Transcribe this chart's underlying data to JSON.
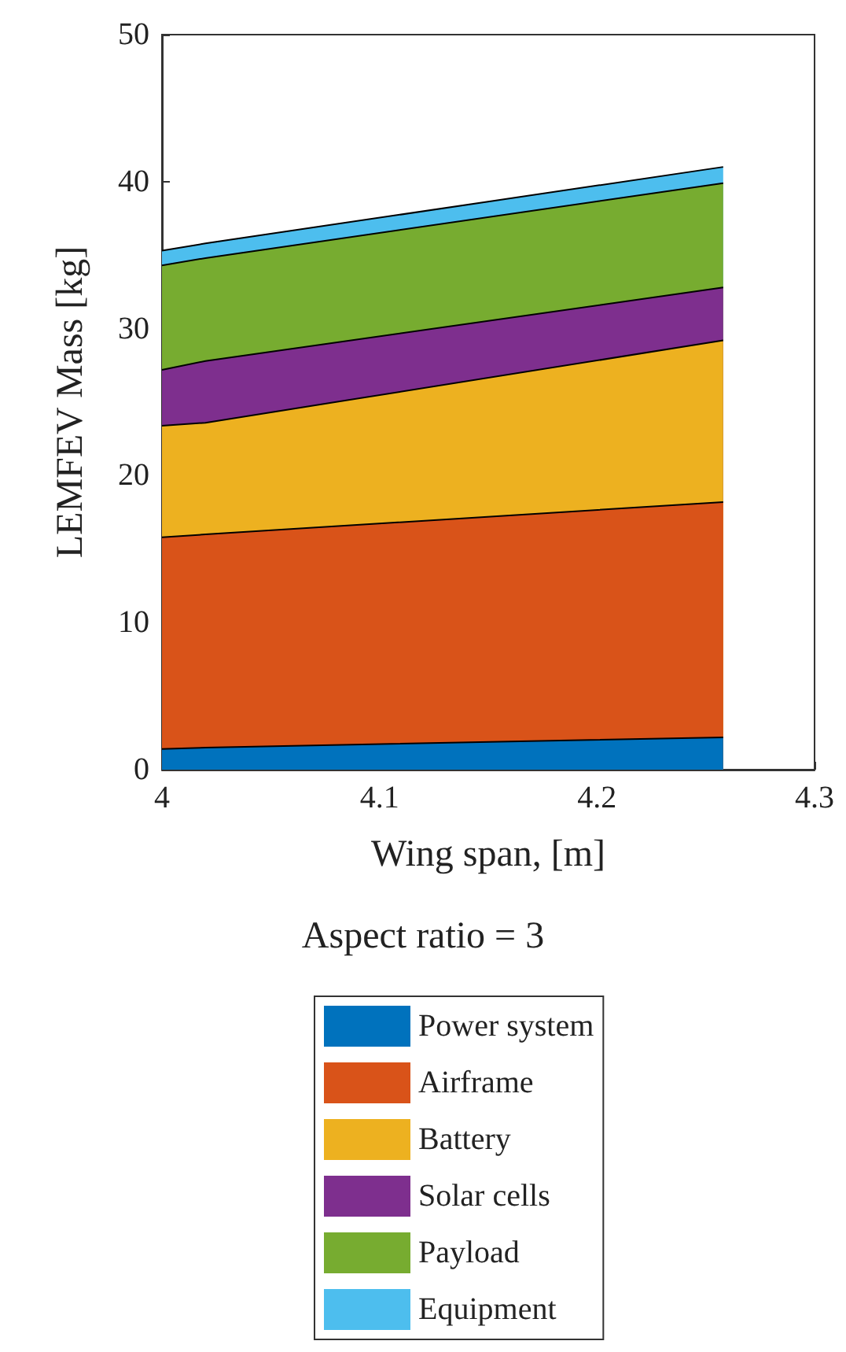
{
  "chart_data": {
    "type": "area",
    "stacked": true,
    "xlabel": "Wing span, [m]",
    "ylabel": "LEMFEV Mass [kg]",
    "annotations": [
      "Aspect ratio = 3"
    ],
    "x": [
      4,
      4.02,
      4.258
    ],
    "xlim": [
      4,
      4.3
    ],
    "xticks": [
      4,
      4.1,
      4.2,
      4.3
    ],
    "ylim": [
      0,
      50
    ],
    "yticks": [
      0,
      10,
      20,
      30,
      40,
      50
    ],
    "grid": false,
    "legend": "bottom",
    "marker": "none",
    "series": [
      {
        "name": "Power system",
        "color": "#0072bd",
        "values": [
          1.4,
          1.5,
          2.2
        ]
      },
      {
        "name": "Airframe",
        "color": "#d95319",
        "values": [
          14.4,
          14.5,
          16.0
        ]
      },
      {
        "name": "Battery",
        "color": "#edb120",
        "values": [
          7.6,
          7.6,
          11.0
        ]
      },
      {
        "name": "Solar cells",
        "color": "#7e2f8e",
        "values": [
          3.8,
          4.2,
          3.6
        ]
      },
      {
        "name": "Payload",
        "color": "#77ac30",
        "values": [
          7.1,
          7.0,
          7.1
        ]
      },
      {
        "name": "Equipment",
        "color": "#4dbeee",
        "values": [
          1.0,
          1.0,
          1.1
        ]
      }
    ]
  }
}
